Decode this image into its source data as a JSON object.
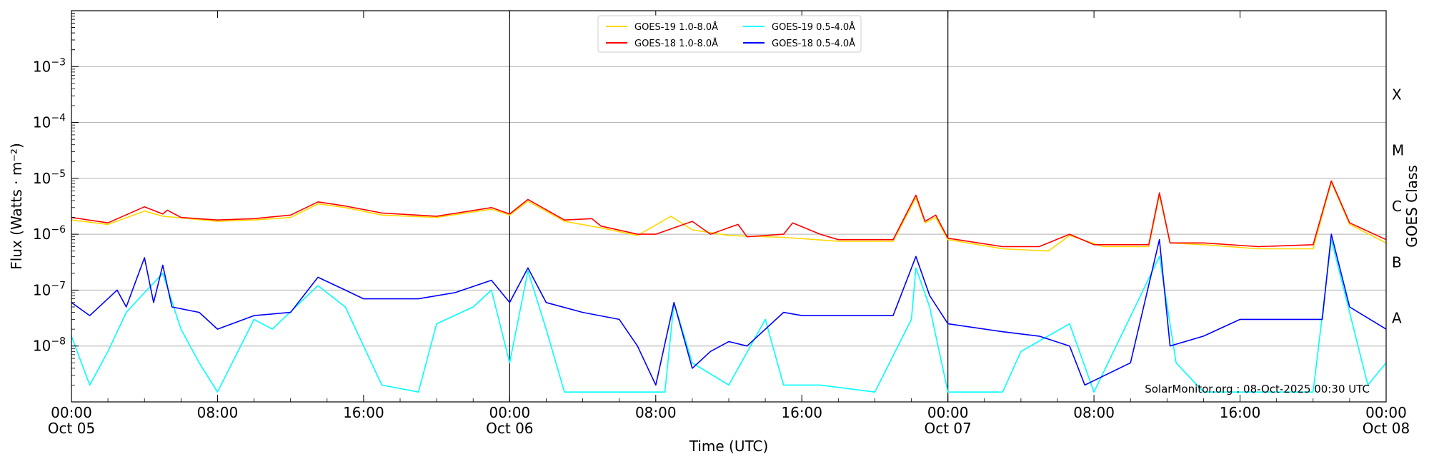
{
  "chart_data": {
    "type": "line",
    "title": "",
    "xlabel": "Time (UTC)",
    "ylabel": "Flux (Watts · m⁻²)",
    "right_label": "GOES Class",
    "credit": "SolarMonitor.org : 08-Oct-2025 00:30 UTC",
    "y_scale": "log",
    "ylim": [
      1e-09,
      0.01
    ],
    "xlim": [
      "2025-10-05 00:00",
      "2025-10-08 00:00"
    ],
    "grid": "horizontal at decades",
    "legend_position": "top-center",
    "y_ticks": [
      {
        "value": 1e-08,
        "mantissa": "10",
        "exp": "−8"
      },
      {
        "value": 1e-07,
        "mantissa": "10",
        "exp": "−7"
      },
      {
        "value": 1e-06,
        "mantissa": "10",
        "exp": "−6"
      },
      {
        "value": 1e-05,
        "mantissa": "10",
        "exp": "−5"
      },
      {
        "value": 0.0001,
        "mantissa": "10",
        "exp": "−4"
      },
      {
        "value": 0.001,
        "mantissa": "10",
        "exp": "−3"
      }
    ],
    "x_ticks": [
      {
        "t": "2025-10-05 00:00",
        "line1": "00:00",
        "line2": "Oct 05"
      },
      {
        "t": "2025-10-05 08:00",
        "line1": "08:00",
        "line2": ""
      },
      {
        "t": "2025-10-05 16:00",
        "line1": "16:00",
        "line2": ""
      },
      {
        "t": "2025-10-06 00:00",
        "line1": "00:00",
        "line2": "Oct 06"
      },
      {
        "t": "2025-10-06 08:00",
        "line1": "08:00",
        "line2": ""
      },
      {
        "t": "2025-10-06 16:00",
        "line1": "16:00",
        "line2": ""
      },
      {
        "t": "2025-10-07 00:00",
        "line1": "00:00",
        "line2": "Oct 07"
      },
      {
        "t": "2025-10-07 08:00",
        "line1": "08:00",
        "line2": ""
      },
      {
        "t": "2025-10-07 16:00",
        "line1": "16:00",
        "line2": ""
      },
      {
        "t": "2025-10-08 00:00",
        "line1": "00:00",
        "line2": "Oct 08"
      }
    ],
    "day_boundaries": [
      "2025-10-06 00:00",
      "2025-10-07 00:00"
    ],
    "class_labels": [
      {
        "label": "A",
        "value": 3.16e-08
      },
      {
        "label": "B",
        "value": 3.16e-07
      },
      {
        "label": "C",
        "value": 3.16e-06
      },
      {
        "label": "M",
        "value": 3.16e-05
      },
      {
        "label": "X",
        "value": 0.000316
      }
    ],
    "series": [
      {
        "name": "GOES-19 1.0-8.0Å",
        "color": "#ffd700",
        "points": [
          [
            "2025-10-05 00:00",
            1.8e-06
          ],
          [
            "2025-10-05 02:00",
            1.5e-06
          ],
          [
            "2025-10-05 04:00",
            2.6e-06
          ],
          [
            "2025-10-05 05:00",
            2.1e-06
          ],
          [
            "2025-10-05 08:00",
            1.7e-06
          ],
          [
            "2025-10-05 10:00",
            1.8e-06
          ],
          [
            "2025-10-05 12:00",
            2e-06
          ],
          [
            "2025-10-05 13:30",
            3.5e-06
          ],
          [
            "2025-10-05 15:00",
            3e-06
          ],
          [
            "2025-10-05 17:00",
            2.2e-06
          ],
          [
            "2025-10-05 20:00",
            2e-06
          ],
          [
            "2025-10-05 23:00",
            2.8e-06
          ],
          [
            "2025-10-06 00:00",
            2.2e-06
          ],
          [
            "2025-10-06 01:00",
            3.9e-06
          ],
          [
            "2025-10-06 03:00",
            1.7e-06
          ],
          [
            "2025-10-06 05:00",
            1.3e-06
          ],
          [
            "2025-10-06 07:00",
            9.5e-07
          ],
          [
            "2025-10-06 08:50",
            2.1e-06
          ],
          [
            "2025-10-06 10:00",
            1.2e-06
          ],
          [
            "2025-10-06 12:00",
            9.5e-07
          ],
          [
            "2025-10-06 15:00",
            8.8e-07
          ],
          [
            "2025-10-06 18:00",
            7.5e-07
          ],
          [
            "2025-10-06 21:00",
            7.5e-07
          ],
          [
            "2025-10-06 22:15",
            4.5e-06
          ],
          [
            "2025-10-06 22:45",
            1.6e-06
          ],
          [
            "2025-10-06 23:20",
            2e-06
          ],
          [
            "2025-10-07 00:00",
            8e-07
          ],
          [
            "2025-10-07 03:00",
            5.5e-07
          ],
          [
            "2025-10-07 05:30",
            5e-07
          ],
          [
            "2025-10-07 06:40",
            9.5e-07
          ],
          [
            "2025-10-07 08:30",
            6e-07
          ],
          [
            "2025-10-07 11:00",
            6e-07
          ],
          [
            "2025-10-07 11:35",
            5e-06
          ],
          [
            "2025-10-07 12:10",
            7e-07
          ],
          [
            "2025-10-07 14:00",
            6.5e-07
          ],
          [
            "2025-10-07 17:00",
            5.5e-07
          ],
          [
            "2025-10-07 20:00",
            5.5e-07
          ],
          [
            "2025-10-07 21:00",
            8.5e-06
          ],
          [
            "2025-10-07 22:00",
            1.5e-06
          ],
          [
            "2025-10-08 00:00",
            7e-07
          ]
        ]
      },
      {
        "name": "GOES-18 1.0-8.0Å",
        "color": "#ff0000",
        "points": [
          [
            "2025-10-05 00:00",
            2e-06
          ],
          [
            "2025-10-05 02:00",
            1.6e-06
          ],
          [
            "2025-10-05 04:00",
            3.1e-06
          ],
          [
            "2025-10-05 05:00",
            2.3e-06
          ],
          [
            "2025-10-05 05:15",
            2.7e-06
          ],
          [
            "2025-10-05 06:00",
            2e-06
          ],
          [
            "2025-10-05 08:00",
            1.8e-06
          ],
          [
            "2025-10-05 10:00",
            1.9e-06
          ],
          [
            "2025-10-05 12:00",
            2.2e-06
          ],
          [
            "2025-10-05 13:30",
            3.8e-06
          ],
          [
            "2025-10-05 15:00",
            3.2e-06
          ],
          [
            "2025-10-05 17:00",
            2.4e-06
          ],
          [
            "2025-10-05 20:00",
            2.1e-06
          ],
          [
            "2025-10-05 23:00",
            3e-06
          ],
          [
            "2025-10-06 00:00",
            2.3e-06
          ],
          [
            "2025-10-06 01:00",
            4.2e-06
          ],
          [
            "2025-10-06 03:00",
            1.8e-06
          ],
          [
            "2025-10-06 04:30",
            1.9e-06
          ],
          [
            "2025-10-06 05:00",
            1.4e-06
          ],
          [
            "2025-10-06 07:00",
            1e-06
          ],
          [
            "2025-10-06 08:00",
            1e-06
          ],
          [
            "2025-10-06 10:00",
            1.7e-06
          ],
          [
            "2025-10-06 11:00",
            1e-06
          ],
          [
            "2025-10-06 12:30",
            1.5e-06
          ],
          [
            "2025-10-06 13:00",
            9e-07
          ],
          [
            "2025-10-06 15:00",
            1e-06
          ],
          [
            "2025-10-06 15:30",
            1.6e-06
          ],
          [
            "2025-10-06 17:00",
            1e-06
          ],
          [
            "2025-10-06 18:00",
            8e-07
          ],
          [
            "2025-10-06 21:00",
            8e-07
          ],
          [
            "2025-10-06 22:15",
            5e-06
          ],
          [
            "2025-10-06 22:45",
            1.7e-06
          ],
          [
            "2025-10-06 23:20",
            2.2e-06
          ],
          [
            "2025-10-07 00:00",
            8.5e-07
          ],
          [
            "2025-10-07 03:00",
            6e-07
          ],
          [
            "2025-10-07 05:00",
            6e-07
          ],
          [
            "2025-10-07 06:40",
            1e-06
          ],
          [
            "2025-10-07 08:00",
            6.5e-07
          ],
          [
            "2025-10-07 11:00",
            6.5e-07
          ],
          [
            "2025-10-07 11:35",
            5.5e-06
          ],
          [
            "2025-10-07 12:10",
            7e-07
          ],
          [
            "2025-10-07 14:00",
            7e-07
          ],
          [
            "2025-10-07 17:00",
            6e-07
          ],
          [
            "2025-10-07 20:00",
            6.5e-07
          ],
          [
            "2025-10-07 21:00",
            9e-06
          ],
          [
            "2025-10-07 22:00",
            1.6e-06
          ],
          [
            "2025-10-08 00:00",
            8e-07
          ]
        ]
      },
      {
        "name": "GOES-19 0.5-4.0Å",
        "color": "#00ffff",
        "points": [
          [
            "2025-10-05 00:00",
            1.5e-08
          ],
          [
            "2025-10-05 01:00",
            2e-09
          ],
          [
            "2025-10-05 02:00",
            8e-09
          ],
          [
            "2025-10-05 03:00",
            4e-08
          ],
          [
            "2025-10-05 04:00",
            9e-08
          ],
          [
            "2025-10-05 05:00",
            2e-07
          ],
          [
            "2025-10-05 06:00",
            2e-08
          ],
          [
            "2025-10-05 07:00",
            5e-09
          ],
          [
            "2025-10-05 08:00",
            1.5e-09
          ],
          [
            "2025-10-05 10:00",
            3e-08
          ],
          [
            "2025-10-05 11:00",
            2e-08
          ],
          [
            "2025-10-05 13:30",
            1.2e-07
          ],
          [
            "2025-10-05 15:00",
            5e-08
          ],
          [
            "2025-10-05 17:00",
            2e-09
          ],
          [
            "2025-10-05 19:00",
            1.5e-09
          ],
          [
            "2025-10-05 20:00",
            2.5e-08
          ],
          [
            "2025-10-05 22:00",
            5e-08
          ],
          [
            "2025-10-05 23:00",
            1e-07
          ],
          [
            "2025-10-06 00:00",
            5e-09
          ],
          [
            "2025-10-06 01:00",
            2.2e-07
          ],
          [
            "2025-10-06 02:00",
            2e-08
          ],
          [
            "2025-10-06 03:00",
            1.5e-09
          ],
          [
            "2025-10-06 08:30",
            1.5e-09
          ],
          [
            "2025-10-06 09:00",
            6e-08
          ],
          [
            "2025-10-06 10:00",
            5e-09
          ],
          [
            "2025-10-06 12:00",
            2e-09
          ],
          [
            "2025-10-06 14:00",
            3e-08
          ],
          [
            "2025-10-06 15:00",
            2e-09
          ],
          [
            "2025-10-06 17:00",
            2e-09
          ],
          [
            "2025-10-06 20:00",
            1.5e-09
          ],
          [
            "2025-10-06 22:00",
            3e-08
          ],
          [
            "2025-10-06 22:15",
            2.5e-07
          ],
          [
            "2025-10-06 23:00",
            5e-08
          ],
          [
            "2025-10-07 00:00",
            1.5e-09
          ],
          [
            "2025-10-07 03:00",
            1.5e-09
          ],
          [
            "2025-10-07 04:00",
            8e-09
          ],
          [
            "2025-10-07 06:40",
            2.5e-08
          ],
          [
            "2025-10-07 08:00",
            1.5e-09
          ],
          [
            "2025-10-07 11:35",
            4e-07
          ],
          [
            "2025-10-07 12:30",
            5e-09
          ],
          [
            "2025-10-07 14:00",
            1.5e-09
          ],
          [
            "2025-10-07 20:00",
            1.5e-09
          ],
          [
            "2025-10-07 21:00",
            8e-07
          ],
          [
            "2025-10-07 22:00",
            4e-08
          ],
          [
            "2025-10-07 23:00",
            2e-09
          ],
          [
            "2025-10-08 00:00",
            5e-09
          ]
        ]
      },
      {
        "name": "GOES-18 0.5-4.0Å",
        "color": "#0000ff",
        "points": [
          [
            "2025-10-05 00:00",
            6e-08
          ],
          [
            "2025-10-05 01:00",
            3.5e-08
          ],
          [
            "2025-10-05 02:30",
            1e-07
          ],
          [
            "2025-10-05 03:00",
            5e-08
          ],
          [
            "2025-10-05 04:00",
            3.8e-07
          ],
          [
            "2025-10-05 04:30",
            6e-08
          ],
          [
            "2025-10-05 05:00",
            2.8e-07
          ],
          [
            "2025-10-05 05:30",
            5e-08
          ],
          [
            "2025-10-05 07:00",
            4e-08
          ],
          [
            "2025-10-05 08:00",
            2e-08
          ],
          [
            "2025-10-05 10:00",
            3.5e-08
          ],
          [
            "2025-10-05 12:00",
            4e-08
          ],
          [
            "2025-10-05 13:30",
            1.7e-07
          ],
          [
            "2025-10-05 15:00",
            1e-07
          ],
          [
            "2025-10-05 16:00",
            7e-08
          ],
          [
            "2025-10-05 19:00",
            7e-08
          ],
          [
            "2025-10-05 21:00",
            9e-08
          ],
          [
            "2025-10-05 23:00",
            1.5e-07
          ],
          [
            "2025-10-06 00:00",
            6e-08
          ],
          [
            "2025-10-06 01:00",
            2.5e-07
          ],
          [
            "2025-10-06 02:00",
            6e-08
          ],
          [
            "2025-10-06 04:00",
            4e-08
          ],
          [
            "2025-10-06 06:00",
            3e-08
          ],
          [
            "2025-10-06 07:00",
            1e-08
          ],
          [
            "2025-10-06 08:00",
            2e-09
          ],
          [
            "2025-10-06 09:00",
            6e-08
          ],
          [
            "2025-10-06 10:00",
            4e-09
          ],
          [
            "2025-10-06 11:00",
            8e-09
          ],
          [
            "2025-10-06 12:00",
            1.2e-08
          ],
          [
            "2025-10-06 13:00",
            1e-08
          ],
          [
            "2025-10-06 15:00",
            4e-08
          ],
          [
            "2025-10-06 16:00",
            3.5e-08
          ],
          [
            "2025-10-06 19:00",
            3.5e-08
          ],
          [
            "2025-10-06 21:00",
            3.5e-08
          ],
          [
            "2025-10-06 22:15",
            4e-07
          ],
          [
            "2025-10-06 23:00",
            8e-08
          ],
          [
            "2025-10-07 00:00",
            2.5e-08
          ],
          [
            "2025-10-07 03:00",
            1.8e-08
          ],
          [
            "2025-10-07 05:00",
            1.5e-08
          ],
          [
            "2025-10-07 06:40",
            1e-08
          ],
          [
            "2025-10-07 07:30",
            2e-09
          ],
          [
            "2025-10-07 10:00",
            5e-09
          ],
          [
            "2025-10-07 11:35",
            8e-07
          ],
          [
            "2025-10-07 12:10",
            1e-08
          ],
          [
            "2025-10-07 14:00",
            1.5e-08
          ],
          [
            "2025-10-07 16:00",
            3e-08
          ],
          [
            "2025-10-07 19:00",
            3e-08
          ],
          [
            "2025-10-07 20:30",
            3e-08
          ],
          [
            "2025-10-07 21:00",
            1e-06
          ],
          [
            "2025-10-07 22:00",
            5e-08
          ],
          [
            "2025-10-08 00:00",
            2e-08
          ]
        ]
      }
    ]
  }
}
